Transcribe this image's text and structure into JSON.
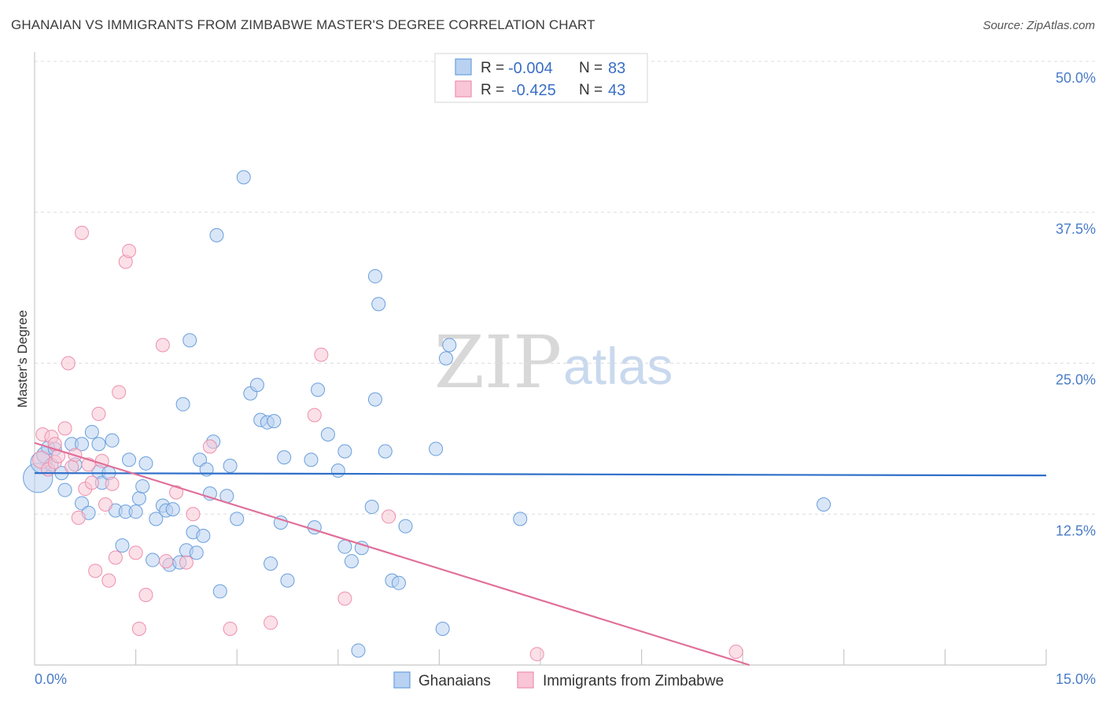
{
  "title": "GHANAIAN VS IMMIGRANTS FROM ZIMBABWE MASTER'S DEGREE CORRELATION CHART",
  "source": "Source: ZipAtlas.com",
  "watermark": {
    "left": "ZIP",
    "right": "atlas"
  },
  "legend": {
    "r_label": "R =",
    "n_label": "N =",
    "rows": [
      {
        "r": "-0.004",
        "n": "83"
      },
      {
        "r": "-0.425",
        "n": "43"
      }
    ]
  },
  "chart_data": {
    "type": "scatter",
    "title": "GHANAIAN VS IMMIGRANTS FROM ZIMBABWE MASTER'S DEGREE CORRELATION CHART",
    "xlabel": "",
    "ylabel": "Master's Degree",
    "xlim": [
      0,
      15
    ],
    "ylim": [
      0,
      50
    ],
    "x_tick_labels": [
      "0.0%",
      "15.0%"
    ],
    "y_ticks": [
      12.5,
      25,
      37.5,
      50
    ],
    "y_tick_labels": [
      "12.5%",
      "25.0%",
      "37.5%",
      "50.0%"
    ],
    "grid": true,
    "colors": {
      "ghanaians": "#6a9fdc",
      "zimbabwe": "#ee8fae",
      "ghana_line": "#2f6fc9",
      "zim_line": "#e0709a"
    },
    "series": [
      {
        "name": "Ghanaians",
        "trend": {
          "x0": 0,
          "y0": 15.9,
          "x1": 15,
          "y1": 15.7
        },
        "points": [
          [
            0.05,
            15.5,
            2.2
          ],
          [
            0.1,
            16.8,
            1.6
          ],
          [
            0.15,
            17.4,
            1.2
          ],
          [
            0.2,
            18.0,
            1.0
          ],
          [
            0.25,
            16.6,
            1.0
          ],
          [
            0.3,
            17.9,
            1.0
          ],
          [
            0.4,
            15.9,
            1.0
          ],
          [
            0.45,
            14.5,
            1.0
          ],
          [
            0.55,
            18.3,
            1.0
          ],
          [
            0.6,
            16.6,
            1.0
          ],
          [
            0.7,
            18.3,
            1.0
          ],
          [
            0.7,
            13.4,
            1.0
          ],
          [
            0.8,
            12.6,
            1.0
          ],
          [
            0.85,
            19.3,
            1.0
          ],
          [
            0.95,
            16.0,
            1.0
          ],
          [
            1.0,
            15.1,
            1.0
          ],
          [
            1.1,
            15.9,
            1.0
          ],
          [
            1.15,
            18.6,
            1.0
          ],
          [
            1.2,
            12.8,
            1.0
          ],
          [
            1.3,
            9.9,
            1.0
          ],
          [
            1.35,
            12.7,
            1.0
          ],
          [
            1.4,
            17.0,
            1.0
          ],
          [
            1.5,
            12.7,
            1.0
          ],
          [
            1.55,
            13.8,
            1.0
          ],
          [
            1.6,
            14.8,
            1.0
          ],
          [
            1.65,
            16.7,
            1.0
          ],
          [
            1.75,
            8.7,
            1.0
          ],
          [
            1.8,
            12.1,
            1.0
          ],
          [
            1.9,
            13.2,
            1.0
          ],
          [
            1.95,
            12.8,
            1.0
          ],
          [
            2.0,
            8.3,
            1.0
          ],
          [
            2.05,
            12.9,
            1.0
          ],
          [
            2.15,
            8.5,
            1.0
          ],
          [
            2.2,
            21.6,
            1.0
          ],
          [
            2.25,
            9.5,
            1.0
          ],
          [
            2.3,
            26.9,
            1.0
          ],
          [
            2.35,
            11.0,
            1.0
          ],
          [
            2.4,
            9.3,
            1.0
          ],
          [
            2.45,
            17.0,
            1.0
          ],
          [
            2.5,
            10.7,
            1.0
          ],
          [
            2.55,
            16.2,
            1.0
          ],
          [
            2.6,
            14.2,
            1.0
          ],
          [
            2.65,
            18.5,
            1.0
          ],
          [
            2.7,
            35.6,
            1.0
          ],
          [
            2.75,
            6.1,
            1.0
          ],
          [
            2.85,
            14.0,
            1.0
          ],
          [
            2.9,
            16.5,
            1.0
          ],
          [
            3.0,
            12.1,
            1.0
          ],
          [
            3.1,
            40.4,
            1.0
          ],
          [
            3.2,
            22.5,
            1.0
          ],
          [
            3.3,
            23.2,
            1.0
          ],
          [
            3.35,
            20.3,
            1.0
          ],
          [
            3.45,
            20.1,
            1.0
          ],
          [
            3.5,
            8.4,
            1.0
          ],
          [
            3.55,
            20.2,
            1.0
          ],
          [
            3.65,
            11.8,
            1.0
          ],
          [
            3.7,
            17.2,
            1.0
          ],
          [
            3.75,
            7.0,
            1.0
          ],
          [
            4.1,
            17.0,
            1.0
          ],
          [
            4.15,
            11.4,
            1.0
          ],
          [
            4.2,
            22.8,
            1.0
          ],
          [
            4.35,
            19.1,
            1.0
          ],
          [
            4.5,
            16.1,
            1.0
          ],
          [
            4.6,
            17.7,
            1.0
          ],
          [
            4.6,
            9.8,
            1.0
          ],
          [
            4.7,
            8.6,
            1.0
          ],
          [
            4.8,
            1.2,
            1.0
          ],
          [
            4.85,
            9.7,
            1.0
          ],
          [
            5.0,
            13.1,
            1.0
          ],
          [
            5.05,
            22.0,
            1.0
          ],
          [
            5.05,
            32.2,
            1.0
          ],
          [
            5.1,
            29.9,
            1.0
          ],
          [
            5.2,
            17.7,
            1.0
          ],
          [
            5.3,
            7.0,
            1.0
          ],
          [
            5.4,
            6.8,
            1.0
          ],
          [
            5.5,
            11.5,
            1.0
          ],
          [
            5.95,
            17.9,
            1.0
          ],
          [
            6.05,
            3.0,
            1.0
          ],
          [
            6.1,
            25.4,
            1.0
          ],
          [
            6.15,
            26.5,
            1.0
          ],
          [
            7.2,
            12.1,
            1.0
          ],
          [
            11.7,
            13.3,
            1.0
          ],
          [
            0.95,
            18.3,
            1.0
          ]
        ]
      },
      {
        "name": "Immigrants from Zimbabwe",
        "trend": {
          "x0": 0,
          "y0": 18.4,
          "x1": 10.6,
          "y1": 0
        },
        "points": [
          [
            0.1,
            17.0,
            1.3
          ],
          [
            0.12,
            19.1,
            1.0
          ],
          [
            0.2,
            16.2,
            1.0
          ],
          [
            0.25,
            18.9,
            1.0
          ],
          [
            0.3,
            16.8,
            1.0
          ],
          [
            0.35,
            17.3,
            1.0
          ],
          [
            0.45,
            19.6,
            1.0
          ],
          [
            0.5,
            25.0,
            1.0
          ],
          [
            0.6,
            17.4,
            1.0
          ],
          [
            0.65,
            12.2,
            1.0
          ],
          [
            0.7,
            35.8,
            1.0
          ],
          [
            0.75,
            14.6,
            1.0
          ],
          [
            0.8,
            16.6,
            1.0
          ],
          [
            0.85,
            15.1,
            1.0
          ],
          [
            0.9,
            7.8,
            1.0
          ],
          [
            0.95,
            20.8,
            1.0
          ],
          [
            1.0,
            16.9,
            1.0
          ],
          [
            1.05,
            13.3,
            1.0
          ],
          [
            1.1,
            7.0,
            1.0
          ],
          [
            1.15,
            15.0,
            1.0
          ],
          [
            1.2,
            8.9,
            1.0
          ],
          [
            1.25,
            22.6,
            1.0
          ],
          [
            1.35,
            33.4,
            1.0
          ],
          [
            1.4,
            34.3,
            1.0
          ],
          [
            1.5,
            9.3,
            1.0
          ],
          [
            1.55,
            3.0,
            1.0
          ],
          [
            1.65,
            5.8,
            1.0
          ],
          [
            1.9,
            26.5,
            1.0
          ],
          [
            1.95,
            8.6,
            1.0
          ],
          [
            2.1,
            14.3,
            1.0
          ],
          [
            2.25,
            8.5,
            1.0
          ],
          [
            2.35,
            12.5,
            1.0
          ],
          [
            2.6,
            18.1,
            1.0
          ],
          [
            2.9,
            3.0,
            1.0
          ],
          [
            3.5,
            3.5,
            1.0
          ],
          [
            4.15,
            20.7,
            1.0
          ],
          [
            4.25,
            25.7,
            1.0
          ],
          [
            4.6,
            5.5,
            1.0
          ],
          [
            5.25,
            12.3,
            1.0
          ],
          [
            7.45,
            0.9,
            1.0
          ],
          [
            10.4,
            1.1,
            1.0
          ],
          [
            0.55,
            16.4,
            1.0
          ],
          [
            0.3,
            18.3,
            1.0
          ]
        ]
      }
    ],
    "legend_bottom": [
      "Ghanaians",
      "Immigrants from Zimbabwe"
    ]
  }
}
